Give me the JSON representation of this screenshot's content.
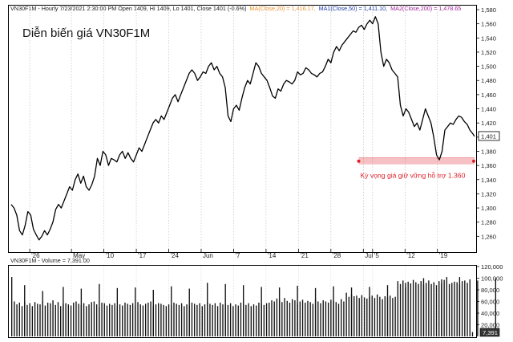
{
  "chart_data": [
    {
      "type": "line",
      "symbol": "VN30F1M",
      "header": {
        "main": "VN30F1M - Hourly 7/23/2021 2:30:00 PM Open 1409, Hi 1409, Lo 1401, Close 1401 (-0.6%)",
        "ma20": "MA(Close,20) = 1,416.17,",
        "ma50": "MA1(Close,50) = 1,411.10,",
        "ma200": "MA2(Close,200) = 1,478.65",
        "ma20_color": "#e8912c",
        "ma50_color": "#1f3aa8",
        "ma200_color": "#a0249a"
      },
      "title": "Diễn biến giá VN30F1M",
      "ylim": [
        1240,
        1580
      ],
      "y_ticks": [
        "1,260",
        "1,280",
        "1,300",
        "1,320",
        "1,340",
        "1,360",
        "1,380",
        "1,400",
        "1,420",
        "1,440",
        "1,460",
        "1,480",
        "1,500",
        "1,520",
        "1,540",
        "1,560",
        "1,580"
      ],
      "x_ticks": [
        "'26",
        "May",
        "'10",
        "'17",
        "'24",
        "Jun",
        "'7",
        "'14",
        "'21",
        "'28",
        "Jul",
        "'5",
        "'12",
        "'19"
      ],
      "x_tick_pos": [
        4,
        13,
        20,
        27,
        34,
        41,
        48,
        55,
        62,
        69,
        76,
        78,
        85,
        92
      ],
      "x_range": [
        0,
        100
      ],
      "last_price": "1,401",
      "last_price_value": 1401,
      "support": {
        "value": 1365,
        "x_start": 75,
        "x_end": 100,
        "label": "Kỳ vọng giá giữ vững hỗ trợ 1.360",
        "color": "#e0202a"
      },
      "series": [
        {
          "color": "#000000",
          "points": [
            [
              0,
              1305
            ],
            [
              0.6,
              1300
            ],
            [
              1.2,
              1290
            ],
            [
              1.8,
              1268
            ],
            [
              2.4,
              1262
            ],
            [
              3.0,
              1275
            ],
            [
              3.6,
              1295
            ],
            [
              4.2,
              1290
            ],
            [
              4.8,
              1270
            ],
            [
              5.4,
              1262
            ],
            [
              6.0,
              1255
            ],
            [
              6.6,
              1260
            ],
            [
              7.2,
              1268
            ],
            [
              7.8,
              1262
            ],
            [
              8.4,
              1270
            ],
            [
              9.0,
              1280
            ],
            [
              9.6,
              1298
            ],
            [
              10.2,
              1305
            ],
            [
              10.8,
              1300
            ],
            [
              11.4,
              1310
            ],
            [
              12.0,
              1320
            ],
            [
              12.6,
              1330
            ],
            [
              13.2,
              1325
            ],
            [
              13.8,
              1340
            ],
            [
              14.4,
              1348
            ],
            [
              15.0,
              1335
            ],
            [
              15.6,
              1345
            ],
            [
              16.2,
              1330
            ],
            [
              16.8,
              1325
            ],
            [
              17.4,
              1333
            ],
            [
              18.0,
              1345
            ],
            [
              18.6,
              1370
            ],
            [
              19.2,
              1360
            ],
            [
              19.8,
              1380
            ],
            [
              20.4,
              1375
            ],
            [
              21.0,
              1360
            ],
            [
              21.6,
              1370
            ],
            [
              22.2,
              1368
            ],
            [
              22.8,
              1365
            ],
            [
              23.4,
              1375
            ],
            [
              24.0,
              1380
            ],
            [
              24.6,
              1370
            ],
            [
              25.2,
              1378
            ],
            [
              25.8,
              1370
            ],
            [
              26.4,
              1365
            ],
            [
              27.0,
              1375
            ],
            [
              27.6,
              1385
            ],
            [
              28.2,
              1380
            ],
            [
              28.8,
              1390
            ],
            [
              29.4,
              1400
            ],
            [
              30.0,
              1410
            ],
            [
              30.6,
              1420
            ],
            [
              31.2,
              1425
            ],
            [
              31.8,
              1420
            ],
            [
              32.4,
              1430
            ],
            [
              33.0,
              1425
            ],
            [
              33.6,
              1435
            ],
            [
              34.2,
              1445
            ],
            [
              34.8,
              1455
            ],
            [
              35.4,
              1460
            ],
            [
              36.0,
              1450
            ],
            [
              36.6,
              1460
            ],
            [
              37.2,
              1470
            ],
            [
              37.8,
              1480
            ],
            [
              38.4,
              1490
            ],
            [
              39.0,
              1495
            ],
            [
              39.6,
              1490
            ],
            [
              40.2,
              1480
            ],
            [
              40.8,
              1485
            ],
            [
              41.4,
              1492
            ],
            [
              42.0,
              1490
            ],
            [
              42.6,
              1500
            ],
            [
              43.2,
              1505
            ],
            [
              43.8,
              1495
            ],
            [
              44.4,
              1500
            ],
            [
              45.0,
              1490
            ],
            [
              45.6,
              1485
            ],
            [
              46.2,
              1470
            ],
            [
              46.8,
              1430
            ],
            [
              47.4,
              1422
            ],
            [
              48.0,
              1440
            ],
            [
              48.6,
              1445
            ],
            [
              49.2,
              1438
            ],
            [
              49.8,
              1455
            ],
            [
              50.4,
              1470
            ],
            [
              51.0,
              1480
            ],
            [
              51.6,
              1475
            ],
            [
              52.2,
              1490
            ],
            [
              52.8,
              1505
            ],
            [
              53.4,
              1500
            ],
            [
              54.0,
              1490
            ],
            [
              54.6,
              1485
            ],
            [
              55.2,
              1480
            ],
            [
              55.8,
              1470
            ],
            [
              56.4,
              1458
            ],
            [
              57.0,
              1455
            ],
            [
              57.6,
              1468
            ],
            [
              58.2,
              1465
            ],
            [
              58.8,
              1475
            ],
            [
              59.4,
              1480
            ],
            [
              60.0,
              1478
            ],
            [
              60.6,
              1475
            ],
            [
              61.2,
              1480
            ],
            [
              61.8,
              1492
            ],
            [
              62.4,
              1488
            ],
            [
              63.0,
              1490
            ],
            [
              63.6,
              1498
            ],
            [
              64.2,
              1495
            ],
            [
              64.8,
              1490
            ],
            [
              65.4,
              1488
            ],
            [
              66.0,
              1485
            ],
            [
              66.6,
              1490
            ],
            [
              67.2,
              1492
            ],
            [
              67.8,
              1500
            ],
            [
              68.4,
              1510
            ],
            [
              69.0,
              1505
            ],
            [
              69.6,
              1520
            ],
            [
              70.2,
              1528
            ],
            [
              70.8,
              1522
            ],
            [
              71.4,
              1530
            ],
            [
              72.0,
              1535
            ],
            [
              72.6,
              1540
            ],
            [
              73.2,
              1545
            ],
            [
              73.8,
              1550
            ],
            [
              74.4,
              1548
            ],
            [
              75.0,
              1555
            ],
            [
              75.6,
              1558
            ],
            [
              76.2,
              1552
            ],
            [
              76.8,
              1560
            ],
            [
              77.4,
              1565
            ],
            [
              78.0,
              1560
            ],
            [
              78.6,
              1570
            ],
            [
              79.2,
              1560
            ],
            [
              79.8,
              1520
            ],
            [
              80.4,
              1500
            ],
            [
              81.0,
              1510
            ],
            [
              81.6,
              1505
            ],
            [
              82.2,
              1495
            ],
            [
              82.8,
              1490
            ],
            [
              83.4,
              1485
            ],
            [
              84.0,
              1445
            ],
            [
              84.6,
              1430
            ],
            [
              85.2,
              1440
            ],
            [
              85.8,
              1435
            ],
            [
              86.4,
              1425
            ],
            [
              87.0,
              1415
            ],
            [
              87.6,
              1420
            ],
            [
              88.2,
              1410
            ],
            [
              88.8,
              1425
            ],
            [
              89.4,
              1440
            ],
            [
              90.0,
              1430
            ],
            [
              90.6,
              1420
            ],
            [
              91.2,
              1400
            ],
            [
              91.8,
              1375
            ],
            [
              92.4,
              1368
            ],
            [
              93.0,
              1380
            ],
            [
              93.6,
              1410
            ],
            [
              94.2,
              1415
            ],
            [
              94.8,
              1420
            ],
            [
              95.4,
              1418
            ],
            [
              96.0,
              1425
            ],
            [
              96.6,
              1430
            ],
            [
              97.2,
              1428
            ],
            [
              97.8,
              1422
            ],
            [
              98.4,
              1418
            ],
            [
              99.0,
              1410
            ],
            [
              99.6,
              1405
            ],
            [
              100,
              1401
            ]
          ]
        }
      ]
    },
    {
      "type": "bar",
      "header": "VN30F1M - Volume = 7,391.00",
      "ylim": [
        0,
        120000
      ],
      "y_ticks": [
        "20,000",
        "40,000",
        "60,000",
        "80,000",
        "100,000",
        "120,000"
      ],
      "last_volume": "7,391",
      "last_volume_value": 7391,
      "values": [
        102000,
        60000,
        55000,
        58000,
        52000,
        60000,
        54000,
        57000,
        52000,
        59000,
        56000,
        55000,
        60000,
        53000,
        58000,
        57000,
        62000,
        54000,
        59000,
        52000,
        56000,
        57000,
        55000,
        53000,
        58000,
        60000,
        56000,
        54000,
        57000,
        52000,
        55000,
        59000,
        60000,
        55000,
        50000,
        58000,
        57000,
        53000,
        56000,
        54000,
        57000,
        52000,
        55000,
        53000,
        58000,
        56000,
        54000,
        57000,
        52000,
        59000,
        55000,
        53000,
        56000,
        58000,
        60000,
        52000,
        55000,
        57000,
        56000,
        54000,
        52000,
        55000,
        53000,
        58000,
        56000,
        54000,
        57000,
        52000,
        55000,
        53000,
        58000,
        56000,
        54000,
        57000,
        52000,
        55000,
        59000,
        56000,
        54000,
        57000,
        52000,
        58000,
        55000,
        56000,
        54000,
        57000,
        52000,
        55000,
        53000,
        58000,
        56000,
        54000,
        57000,
        52000,
        55000,
        53000,
        58000,
        56000,
        54000,
        57000,
        58000,
        62000,
        60000,
        65000,
        63000,
        59000,
        66000,
        61000,
        58000,
        64000,
        62000,
        57000,
        60000,
        63000,
        58000,
        61000,
        59000,
        56000,
        64000,
        60000,
        57000,
        62000,
        60000,
        58000,
        63000,
        61000,
        59000,
        56000,
        64000,
        60000,
        75000,
        68000,
        72000,
        69000,
        70000,
        66000,
        71000,
        67000,
        65000,
        68000,
        70000,
        66000,
        72000,
        68000,
        64000,
        69000,
        67000,
        70000,
        66000,
        68000,
        95000,
        90000,
        96000,
        92000,
        94000,
        91000,
        97000,
        93000,
        90000,
        95000,
        89000,
        92000,
        96000,
        90000,
        93000,
        88000,
        95000,
        91000,
        97000,
        102000,
        90000,
        92000,
        94000,
        93000,
        89000,
        95000,
        96000,
        92000,
        98000,
        7391
      ],
      "spikes": [
        [
          5,
          88000
        ],
        [
          12,
          78000
        ],
        [
          20,
          85000
        ],
        [
          27,
          82000
        ],
        [
          34,
          90000
        ],
        [
          41,
          83000
        ],
        [
          48,
          84000
        ],
        [
          55,
          80000
        ],
        [
          62,
          86000
        ],
        [
          69,
          82000
        ],
        [
          76,
          92000
        ],
        [
          83,
          90000
        ],
        [
          90,
          88000
        ],
        [
          97,
          85000
        ],
        [
          104,
          84000
        ],
        [
          111,
          87000
        ],
        [
          118,
          83000
        ],
        [
          125,
          86000
        ],
        [
          132,
          84000
        ],
        [
          139,
          85000
        ],
        [
          146,
          88000
        ],
        [
          153,
          84000
        ],
        [
          160,
          100000
        ],
        [
          167,
          98000
        ],
        [
          174,
          102000
        ],
        [
          181,
          96000
        ],
        [
          188,
          100000
        ],
        [
          195,
          98000
        ]
      ]
    }
  ]
}
